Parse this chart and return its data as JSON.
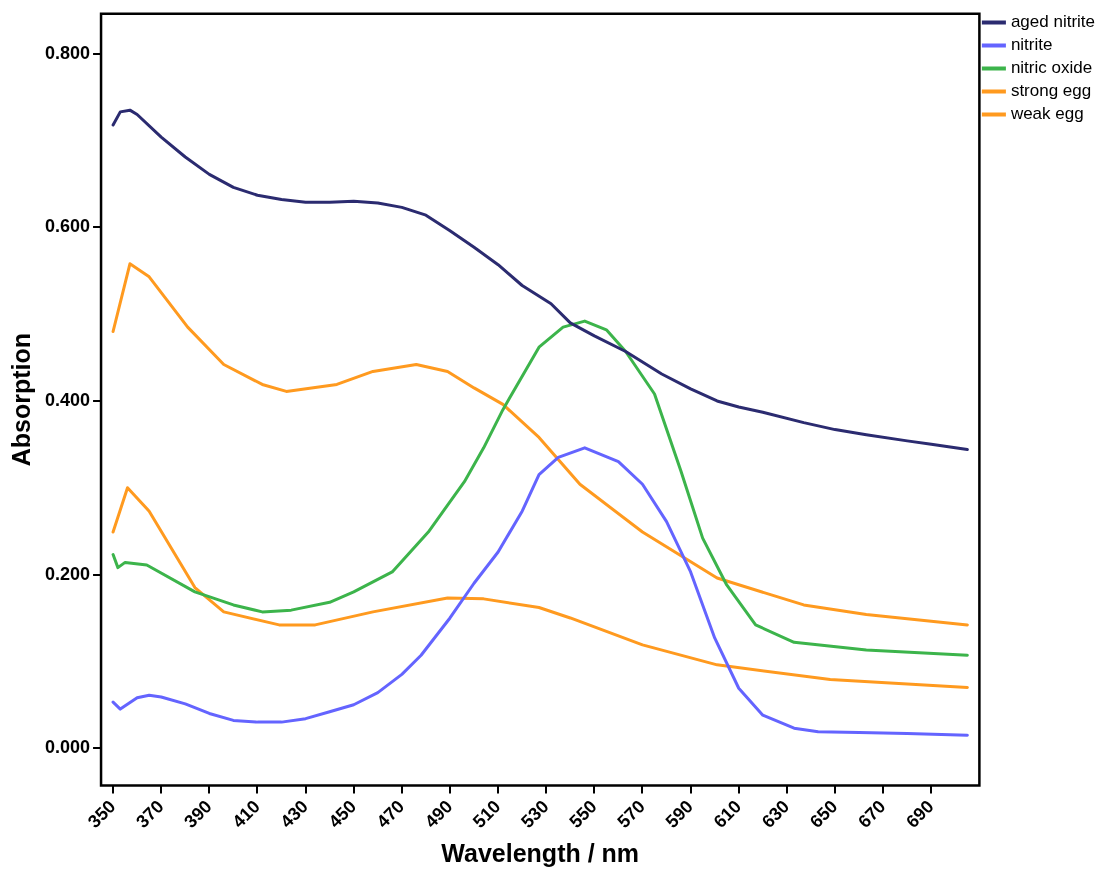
{
  "chart_data": {
    "type": "line",
    "xlabel": "Wavelength / nm",
    "ylabel": "Absorption",
    "xlim": [
      345,
      710
    ],
    "ylim": [
      -0.043,
      0.846
    ],
    "xticks": [
      350,
      370,
      390,
      410,
      430,
      450,
      470,
      490,
      510,
      530,
      550,
      570,
      590,
      610,
      630,
      650,
      670,
      690
    ],
    "yticks": [
      {
        "value": 0,
        "label": "0.000"
      },
      {
        "value": 0.2,
        "label": "0.200"
      },
      {
        "value": 0.4,
        "label": "0.400"
      },
      {
        "value": 0.6,
        "label": "0.600"
      },
      {
        "value": 0.8,
        "label": "0.800"
      }
    ],
    "grid": false,
    "legend": "top right",
    "marker": "none",
    "line_style": "solid",
    "series": [
      {
        "name": "aged nitrite",
        "color": "#2b2b70",
        "x": [
          350,
          353,
          357,
          360,
          370,
          380,
          390,
          400,
          410,
          420,
          430,
          440,
          450,
          460,
          470,
          480,
          490,
          500,
          510,
          520,
          532,
          540,
          550,
          563,
          578,
          590,
          601,
          610,
          620,
          637,
          650,
          663,
          680,
          690,
          705
        ],
        "values": [
          0.718,
          0.733,
          0.735,
          0.73,
          0.704,
          0.681,
          0.661,
          0.646,
          0.637,
          0.632,
          0.629,
          0.629,
          0.63,
          0.628,
          0.623,
          0.614,
          0.596,
          0.577,
          0.557,
          0.533,
          0.512,
          0.49,
          0.475,
          0.457,
          0.431,
          0.414,
          0.4,
          0.393,
          0.387,
          0.375,
          0.367,
          0.361,
          0.354,
          0.35,
          0.344
        ]
      },
      {
        "name": "nitrite",
        "color": "#6464ff",
        "x": [
          350,
          353,
          360,
          365,
          370,
          380,
          390,
          400,
          410,
          420,
          430,
          440,
          450,
          460,
          470,
          478,
          490,
          500,
          510,
          520,
          527,
          535,
          546,
          560,
          570,
          580,
          590,
          600,
          610,
          620,
          633,
          643,
          660,
          680,
          705
        ],
        "values": [
          0.053,
          0.045,
          0.058,
          0.061,
          0.059,
          0.051,
          0.04,
          0.032,
          0.03,
          0.03,
          0.034,
          0.042,
          0.05,
          0.064,
          0.085,
          0.107,
          0.15,
          0.19,
          0.226,
          0.273,
          0.315,
          0.335,
          0.346,
          0.33,
          0.304,
          0.261,
          0.203,
          0.127,
          0.069,
          0.038,
          0.023,
          0.019,
          0.018,
          0.017,
          0.015
        ]
      },
      {
        "name": "nitric oxide",
        "color": "#3cb44b",
        "x": [
          350,
          352,
          355,
          364,
          384,
          400,
          412,
          424,
          440,
          450,
          466,
          481,
          496,
          504,
          512,
          527,
          537,
          546,
          555,
          563,
          575,
          586,
          595,
          605,
          617,
          633,
          663,
          705
        ],
        "values": [
          0.223,
          0.208,
          0.214,
          0.211,
          0.18,
          0.165,
          0.157,
          0.159,
          0.168,
          0.18,
          0.203,
          0.249,
          0.307,
          0.346,
          0.39,
          0.462,
          0.485,
          0.492,
          0.482,
          0.457,
          0.408,
          0.319,
          0.242,
          0.188,
          0.142,
          0.122,
          0.113,
          0.107
        ]
      },
      {
        "name": "strong egg",
        "color": "#ff9a1f",
        "x": [
          350,
          357,
          365,
          381,
          396,
          412,
          422,
          443,
          458,
          476,
          489,
          500,
          512,
          527,
          544,
          570,
          601,
          637,
          663,
          705
        ],
        "values": [
          0.48,
          0.558,
          0.543,
          0.485,
          0.442,
          0.419,
          0.411,
          0.419,
          0.434,
          0.442,
          0.434,
          0.415,
          0.396,
          0.358,
          0.304,
          0.249,
          0.196,
          0.165,
          0.154,
          0.142
        ]
      },
      {
        "name": "weak egg",
        "color": "#ff9a1f",
        "x": [
          350,
          356,
          365,
          384,
          396,
          419,
          434,
          458,
          489,
          504,
          527,
          540,
          570,
          601,
          648,
          705
        ],
        "values": [
          0.249,
          0.3,
          0.273,
          0.185,
          0.157,
          0.142,
          0.142,
          0.157,
          0.173,
          0.172,
          0.162,
          0.15,
          0.119,
          0.096,
          0.079,
          0.07
        ]
      }
    ]
  }
}
